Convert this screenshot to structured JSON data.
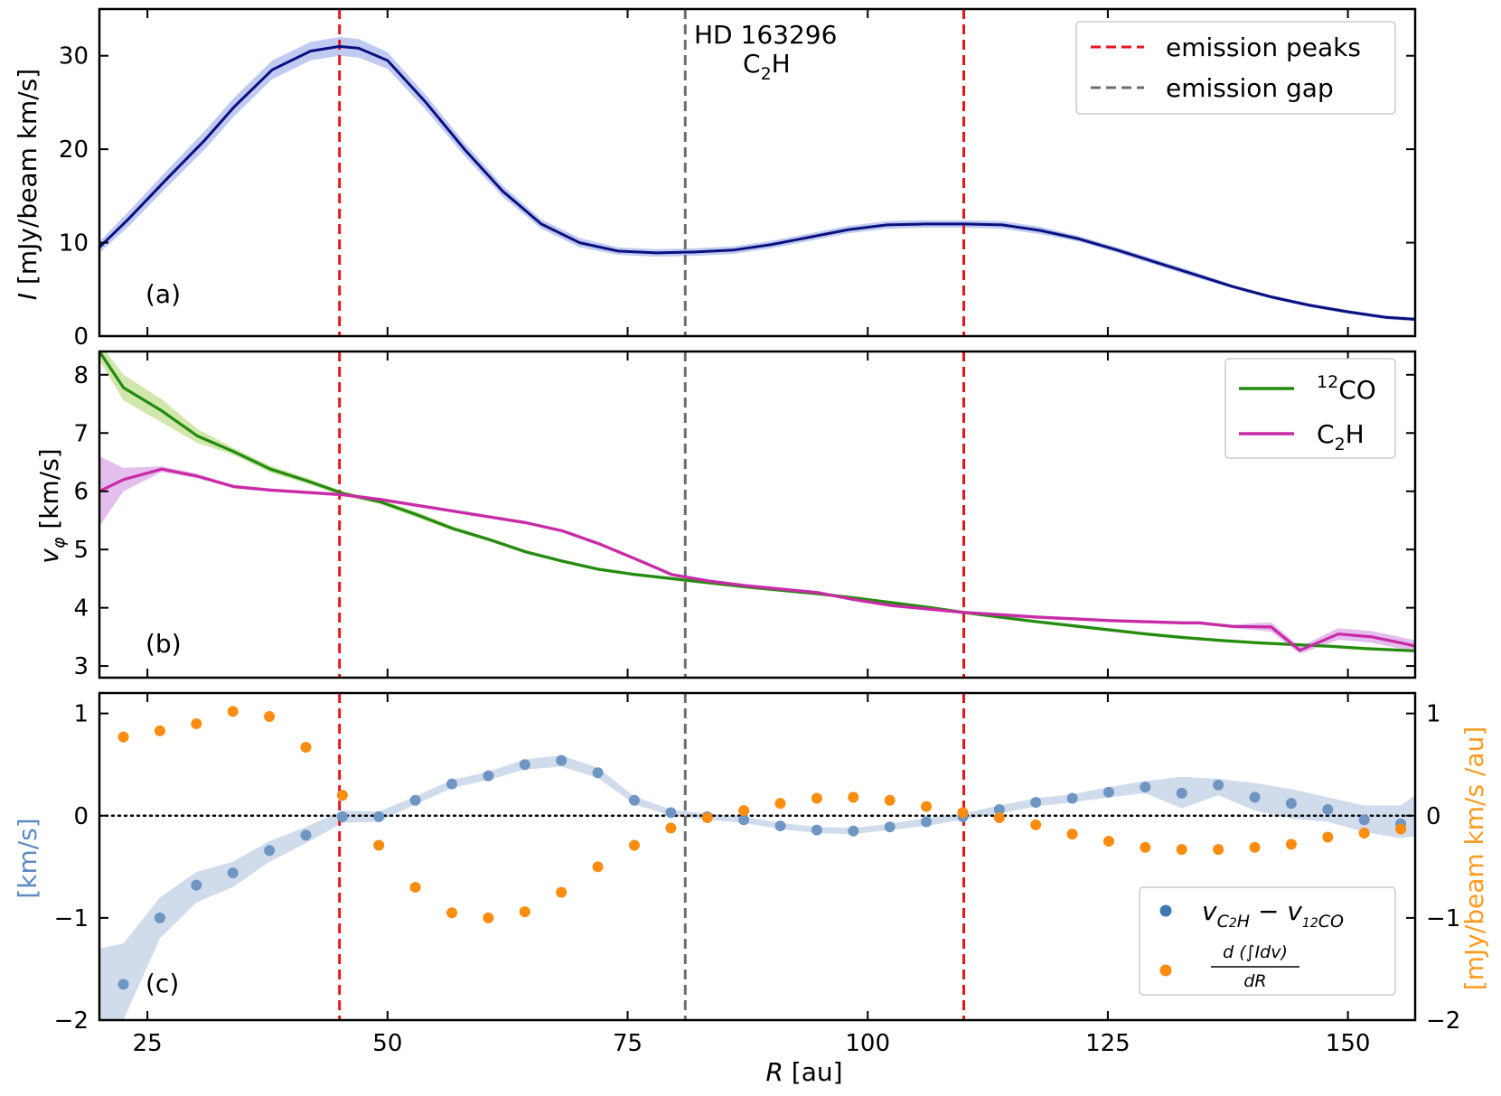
{
  "figure": {
    "xlabel_var": "R",
    "xlabel_unit": "[au]",
    "xlim": [
      20,
      157
    ],
    "xticks": [
      25,
      50,
      75,
      100,
      125,
      150
    ],
    "peak_lines": [
      45,
      110
    ],
    "gap_line": 81
  },
  "colors": {
    "peak": "#e8141c",
    "gap": "#6e6e6e",
    "intensity_line": "#0a1080",
    "intensity_band": "#b6c2ee",
    "co": "#238b11",
    "co_band": "#c9e39d",
    "c2h": "#c92aa6",
    "c2h_band": "#dfb3ea",
    "dv": "#6f96c3",
    "dv_band": "#c8d6e8",
    "grad": "#fa8c10",
    "right_axis_label": "#ff9a1e",
    "left_axis_label_c": "#5c8bc2"
  },
  "chart_data": [
    {
      "id": "a",
      "type": "line",
      "panel_label": "(a)",
      "ylabel_var": "I",
      "ylabel_unit": "[mJy/beam km/s]",
      "ylim": [
        0,
        35
      ],
      "yticks": [
        0,
        10,
        20,
        30
      ],
      "annotation_line1": "HD 163296",
      "annotation_line2_main": "C",
      "annotation_line2_sub": "2",
      "annotation_line2_end": "H",
      "legend": [
        "emission peaks",
        "emission gap"
      ],
      "x": [
        20,
        23,
        27,
        31,
        34,
        38,
        42,
        45,
        47,
        50,
        54,
        58,
        62,
        66,
        70,
        74,
        78,
        82,
        86,
        90,
        94,
        98,
        102,
        106,
        110,
        114,
        118,
        122,
        126,
        130,
        134,
        138,
        142,
        146,
        150,
        154,
        157
      ],
      "y": [
        9.5,
        12.5,
        16.8,
        21.0,
        24.5,
        28.5,
        30.5,
        31.0,
        30.8,
        29.5,
        25.0,
        20.0,
        15.5,
        12.0,
        10.0,
        9.1,
        8.9,
        9.0,
        9.2,
        9.8,
        10.6,
        11.4,
        11.9,
        12.0,
        12.0,
        11.9,
        11.3,
        10.4,
        9.2,
        7.9,
        6.6,
        5.3,
        4.2,
        3.3,
        2.6,
        2.0,
        1.8
      ],
      "err": [
        0.6,
        0.8,
        0.9,
        1.0,
        1.0,
        1.0,
        1.0,
        1.0,
        1.0,
        0.9,
        0.8,
        0.7,
        0.6,
        0.5,
        0.5,
        0.4,
        0.4,
        0.4,
        0.4,
        0.4,
        0.4,
        0.4,
        0.4,
        0.4,
        0.4,
        0.4,
        0.4,
        0.3,
        0.3,
        0.3,
        0.3,
        0.2,
        0.2,
        0.2,
        0.2,
        0.2,
        0.2
      ]
    },
    {
      "id": "b",
      "type": "line",
      "panel_label": "(b)",
      "ylabel_var": "v",
      "ylabel_sub": "φ",
      "ylabel_unit": "[km/s]",
      "ylim": [
        2.8,
        8.4
      ],
      "yticks": [
        3,
        4,
        5,
        6,
        7,
        8
      ],
      "legend_co_sup": "12",
      "legend_co_main": "CO",
      "legend_c2h_main": "C",
      "legend_c2h_sub": "2",
      "legend_c2h_end": "H",
      "series": [
        {
          "name": "12CO",
          "x": [
            20,
            22.5,
            26.5,
            30.2,
            34,
            37.8,
            41.6,
            45.4,
            49.2,
            53,
            56.8,
            60.6,
            64.4,
            68.2,
            72,
            75.8,
            79.6,
            83.4,
            87.2,
            91,
            94.8,
            98.6,
            102.4,
            106.2,
            110,
            113.8,
            117.6,
            121.4,
            125.2,
            129,
            132.8,
            136.6,
            140.4,
            144.2,
            148,
            151.8,
            155.6,
            157
          ],
          "y": [
            8.4,
            7.78,
            7.38,
            6.95,
            6.68,
            6.38,
            6.18,
            5.96,
            5.82,
            5.6,
            5.36,
            5.17,
            4.96,
            4.8,
            4.66,
            4.57,
            4.5,
            4.43,
            4.36,
            4.3,
            4.24,
            4.17,
            4.09,
            4.01,
            3.92,
            3.84,
            3.76,
            3.69,
            3.62,
            3.55,
            3.49,
            3.44,
            3.4,
            3.37,
            3.34,
            3.3,
            3.27,
            3.26
          ],
          "err": [
            0.15,
            0.22,
            0.2,
            0.12,
            0.06,
            0.06,
            0.05,
            0.04,
            0.04,
            0.05,
            0.04,
            0.03,
            0.03,
            0.03,
            0.03,
            0.03,
            0.03,
            0.03,
            0.03,
            0.03,
            0.03,
            0.03,
            0.03,
            0.03,
            0.03,
            0.03,
            0.03,
            0.03,
            0.03,
            0.03,
            0.03,
            0.03,
            0.03,
            0.03,
            0.03,
            0.03,
            0.03,
            0.03
          ]
        },
        {
          "name": "C2H",
          "x": [
            20,
            22.5,
            26.5,
            30.2,
            34,
            37.8,
            41.6,
            45.4,
            49.2,
            53,
            56.8,
            60.6,
            64.4,
            68.2,
            72,
            75.8,
            79.6,
            83.4,
            87.2,
            91,
            94.8,
            98.6,
            102.4,
            106.2,
            110,
            113.8,
            117.6,
            121.4,
            125.2,
            129,
            132.8,
            134.5,
            138,
            142,
            145,
            149,
            152.5,
            156,
            157
          ],
          "y": [
            6.0,
            6.2,
            6.38,
            6.26,
            6.08,
            6.02,
            5.98,
            5.94,
            5.86,
            5.76,
            5.66,
            5.56,
            5.46,
            5.32,
            5.1,
            4.84,
            4.57,
            4.46,
            4.38,
            4.32,
            4.26,
            4.14,
            4.04,
            3.98,
            3.92,
            3.88,
            3.84,
            3.81,
            3.78,
            3.76,
            3.74,
            3.74,
            3.68,
            3.67,
            3.27,
            3.55,
            3.5,
            3.38,
            3.34
          ],
          "err": [
            0.6,
            0.2,
            0.05,
            0.04,
            0.03,
            0.03,
            0.03,
            0.03,
            0.03,
            0.03,
            0.03,
            0.03,
            0.03,
            0.03,
            0.03,
            0.03,
            0.03,
            0.03,
            0.03,
            0.03,
            0.03,
            0.03,
            0.03,
            0.03,
            0.03,
            0.03,
            0.03,
            0.03,
            0.03,
            0.03,
            0.03,
            0.03,
            0.03,
            0.08,
            0.06,
            0.1,
            0.1,
            0.1,
            0.1
          ]
        }
      ]
    },
    {
      "id": "c",
      "type": "scatter",
      "panel_label": "(c)",
      "ylabel_left": "[km/s]",
      "ylabel_right": "[mJy/beam km/s /au]",
      "ylim": [
        -2,
        1.2
      ],
      "yticks": [
        -2,
        -1,
        0,
        1
      ],
      "ylim_right": [
        -2,
        1.2
      ],
      "yticks_right": [
        -2,
        -1,
        0,
        1
      ],
      "legend_dv_label": "v_C2H − v_12CO",
      "legend_dv_v": "v",
      "legend_dv_sub1": "C",
      "legend_dv_sub1b": "2",
      "legend_dv_sub1c": "H",
      "legend_dv_minus": " − v",
      "legend_dv_sub2": "12",
      "legend_dv_sub2b": "CO",
      "legend_grad_num": "d (∫Idv)",
      "legend_grad_den": "dR",
      "series": [
        {
          "name": "v_C2H - v_12CO",
          "x": [
            22.5,
            26.3,
            30.1,
            33.9,
            37.7,
            41.5,
            45.3,
            49.1,
            52.9,
            56.7,
            60.5,
            64.3,
            68.1,
            71.9,
            75.7,
            79.5,
            83.3,
            87.1,
            90.9,
            94.7,
            98.5,
            102.3,
            106.1,
            109.9,
            113.7,
            117.5,
            121.3,
            125.1,
            128.9,
            132.7,
            136.5,
            140.3,
            144.1,
            147.9,
            151.7,
            155.5
          ],
          "y": [
            -1.65,
            -1.0,
            -0.68,
            -0.56,
            -0.34,
            -0.19,
            -0.01,
            -0.01,
            0.15,
            0.31,
            0.39,
            0.5,
            0.54,
            0.42,
            0.15,
            0.03,
            -0.01,
            -0.04,
            -0.1,
            -0.14,
            -0.15,
            -0.11,
            -0.06,
            -0.01,
            0.06,
            0.13,
            0.17,
            0.23,
            0.28,
            0.22,
            0.3,
            0.18,
            0.12,
            0.06,
            -0.04,
            -0.08
          ],
          "band_x": [
            20,
            22.5,
            26.3,
            30.1,
            33.9,
            37.7,
            41.5,
            45.3,
            49.1,
            52.9,
            56.7,
            60.5,
            64.3,
            68.1,
            71.9,
            75.7,
            79.5,
            83.3,
            87.1,
            90.9,
            94.7,
            98.5,
            102.3,
            106.1,
            109.9,
            113.7,
            117.5,
            121.3,
            125.1,
            128.9,
            132.7,
            136.5,
            140.3,
            144.1,
            147.9,
            151.7,
            155.5,
            157
          ],
          "band_lo": [
            -2.0,
            -2.0,
            -1.2,
            -0.85,
            -0.7,
            -0.45,
            -0.27,
            -0.07,
            -0.06,
            0.11,
            0.27,
            0.35,
            0.45,
            0.48,
            0.37,
            0.11,
            0.0,
            -0.04,
            -0.07,
            -0.13,
            -0.17,
            -0.18,
            -0.14,
            -0.1,
            -0.04,
            0.02,
            0.09,
            0.13,
            0.18,
            0.22,
            0.07,
            0.2,
            0.05,
            -0.03,
            -0.06,
            -0.16,
            -0.22,
            -0.2
          ],
          "band_hi": [
            -1.3,
            -1.25,
            -0.8,
            -0.55,
            -0.45,
            -0.25,
            -0.11,
            0.05,
            0.04,
            0.19,
            0.35,
            0.43,
            0.55,
            0.59,
            0.47,
            0.19,
            0.06,
            0.02,
            -0.01,
            -0.07,
            -0.11,
            -0.12,
            -0.08,
            -0.02,
            0.02,
            0.1,
            0.17,
            0.21,
            0.28,
            0.34,
            0.38,
            0.36,
            0.32,
            0.26,
            0.18,
            0.1,
            0.1,
            0.2
          ]
        },
        {
          "name": "d(∫Idv)/dR",
          "x": [
            22.5,
            26.3,
            30.1,
            33.9,
            37.7,
            41.5,
            45.3,
            49.1,
            52.9,
            56.7,
            60.5,
            64.3,
            68.1,
            71.9,
            75.7,
            79.5,
            83.3,
            87.1,
            90.9,
            94.7,
            98.5,
            102.3,
            106.1,
            109.9,
            113.7,
            117.5,
            121.3,
            125.1,
            128.9,
            132.7,
            136.5,
            140.3,
            144.1,
            147.9,
            151.7,
            155.5
          ],
          "y": [
            0.77,
            0.83,
            0.9,
            1.02,
            0.97,
            0.67,
            0.2,
            -0.29,
            -0.7,
            -0.95,
            -1.0,
            -0.94,
            -0.75,
            -0.5,
            -0.29,
            -0.12,
            -0.02,
            0.05,
            0.12,
            0.17,
            0.18,
            0.15,
            0.09,
            0.03,
            -0.02,
            -0.09,
            -0.18,
            -0.25,
            -0.31,
            -0.33,
            -0.33,
            -0.31,
            -0.28,
            -0.21,
            -0.17,
            -0.13
          ]
        }
      ]
    }
  ]
}
